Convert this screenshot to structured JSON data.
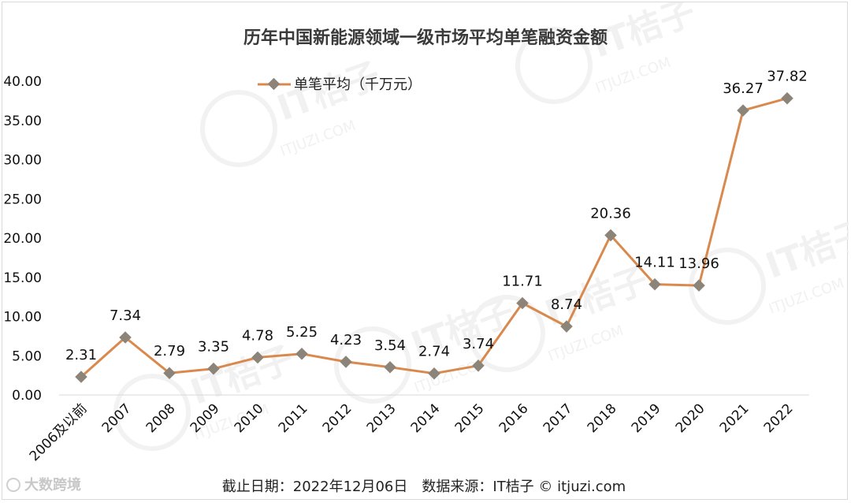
{
  "chart_data": {
    "type": "line",
    "title": "历年中国新能源领域一级市场平均单笔融资金额",
    "categories": [
      "2006及以前",
      "2007",
      "2008",
      "2009",
      "2010",
      "2011",
      "2012",
      "2013",
      "2014",
      "2015",
      "2016",
      "2017",
      "2018",
      "2019",
      "2020",
      "2021",
      "2022"
    ],
    "series": [
      {
        "name": "单笔平均（千万元）",
        "values": [
          2.31,
          7.34,
          2.79,
          3.35,
          4.78,
          5.25,
          4.23,
          3.54,
          2.74,
          3.74,
          11.71,
          8.74,
          20.36,
          14.11,
          13.96,
          36.27,
          37.82
        ],
        "labels": [
          "2.31",
          "7.34",
          "2.79",
          "3.35",
          "4.78",
          "5.25",
          "4.23",
          "3.54",
          "2.74",
          "3.74",
          "11.71",
          "8.74",
          "20.36",
          "14.11",
          "13.96",
          "36.27",
          "37.82"
        ],
        "color": "#d9894d",
        "marker_color": "#8c8478"
      }
    ],
    "ylim": [
      0,
      40
    ],
    "yticks": [
      "0.00",
      "5.00",
      "10.00",
      "15.00",
      "20.00",
      "25.00",
      "30.00",
      "35.00",
      "40.00"
    ],
    "xlabel": "",
    "ylabel": "",
    "grid": false,
    "legend_position": "top-left"
  },
  "footer": "截止日期：2022年12月06日　数据来源：IT桔子 © itjuzi.com",
  "watermark": {
    "text": "IT桔子",
    "sub": "ITJUZI.COM"
  },
  "brand": "大数跨境"
}
